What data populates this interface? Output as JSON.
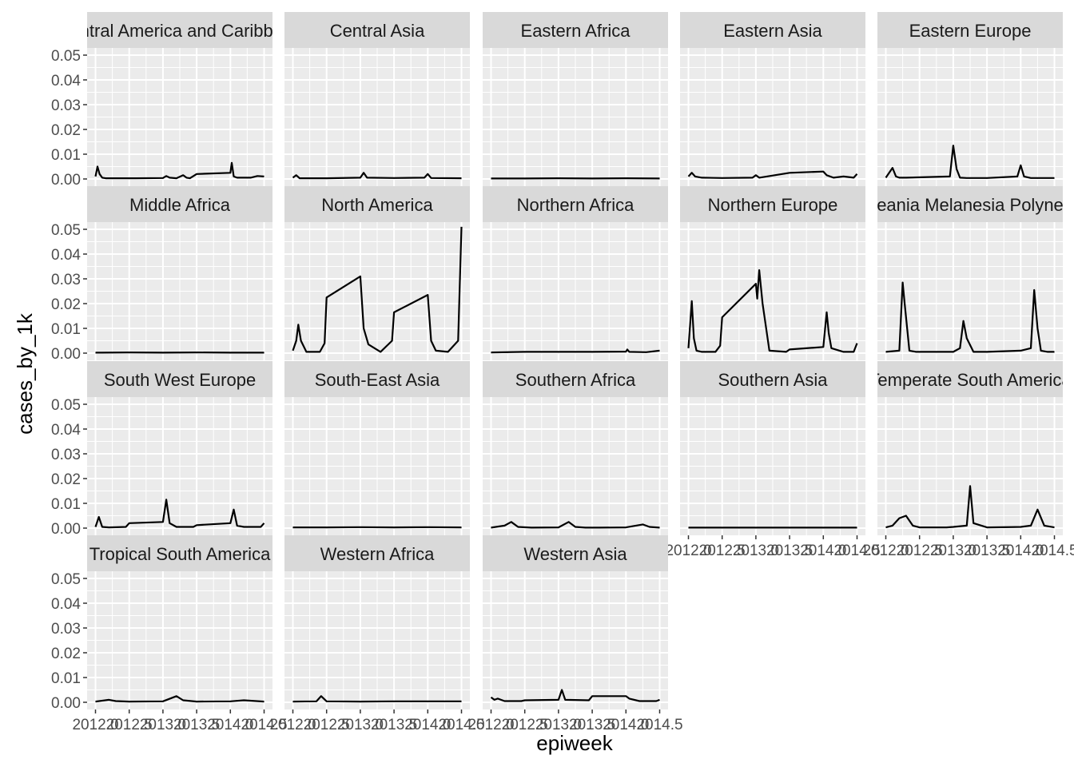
{
  "chart_data": {
    "type": "line",
    "facet_layout": "wrap",
    "xlabel": "epiweek",
    "ylabel": "cases_by_1k",
    "xlim": [
      2012.0,
      2014.5
    ],
    "ylim": [
      0.0,
      0.05
    ],
    "x_ticks": [
      "2012.0",
      "2012.5",
      "2013.0",
      "2013.5",
      "2014.0",
      "2014.5"
    ],
    "y_ticks": [
      "0.00",
      "0.01",
      "0.02",
      "0.03",
      "0.04",
      "0.05"
    ],
    "grid": true,
    "colors": {
      "panel_bg": "#ebebeb",
      "strip_bg": "#d9d9d9",
      "grid": "#ffffff",
      "line": "#000000"
    },
    "panels": [
      {
        "label": "Central America and Caribbean",
        "x": [
          2012.0,
          2012.03,
          2012.06,
          2012.1,
          2012.15,
          2012.3,
          2012.6,
          2013.0,
          2013.05,
          2013.1,
          2013.2,
          2013.3,
          2013.35,
          2013.4,
          2013.5,
          2014.0,
          2014.02,
          2014.05,
          2014.1,
          2014.3,
          2014.4,
          2014.5
        ],
        "y": [
          0.001,
          0.005,
          0.002,
          0.0005,
          0.0003,
          0.0003,
          0.0003,
          0.0004,
          0.0012,
          0.0005,
          0.0003,
          0.0015,
          0.0005,
          0.0003,
          0.002,
          0.0025,
          0.0065,
          0.001,
          0.0005,
          0.0005,
          0.0012,
          0.001
        ]
      },
      {
        "label": "Central Asia",
        "x": [
          2012.0,
          2012.05,
          2012.1,
          2012.5,
          2013.0,
          2013.05,
          2013.1,
          2013.5,
          2013.95,
          2014.0,
          2014.05,
          2014.5
        ],
        "y": [
          0.0005,
          0.0015,
          0.0003,
          0.0003,
          0.0005,
          0.0025,
          0.0005,
          0.0004,
          0.0005,
          0.002,
          0.0004,
          0.0003
        ]
      },
      {
        "label": "Eastern Africa",
        "x": [
          2012.0,
          2012.5,
          2013.0,
          2013.5,
          2014.0,
          2014.5
        ],
        "y": [
          0.0002,
          0.0002,
          0.0003,
          0.0002,
          0.0003,
          0.0002
        ]
      },
      {
        "label": "Eastern Asia",
        "x": [
          2012.0,
          2012.05,
          2012.1,
          2012.2,
          2012.5,
          2012.95,
          2013.0,
          2013.05,
          2013.5,
          2014.0,
          2014.05,
          2014.15,
          2014.3,
          2014.45,
          2014.5
        ],
        "y": [
          0.001,
          0.0025,
          0.001,
          0.0005,
          0.0004,
          0.0005,
          0.0015,
          0.0005,
          0.0025,
          0.003,
          0.0015,
          0.0005,
          0.001,
          0.0005,
          0.002
        ]
      },
      {
        "label": "Eastern Europe",
        "x": [
          2012.0,
          2012.1,
          2012.15,
          2012.2,
          2012.3,
          2012.95,
          2013.0,
          2013.05,
          2013.1,
          2013.2,
          2013.5,
          2013.95,
          2014.0,
          2014.05,
          2014.15,
          2014.5
        ],
        "y": [
          0.0005,
          0.0045,
          0.001,
          0.0005,
          0.0005,
          0.001,
          0.0135,
          0.004,
          0.0005,
          0.0004,
          0.0004,
          0.001,
          0.0055,
          0.001,
          0.0004,
          0.0004
        ]
      },
      {
        "label": "Middle Africa",
        "x": [
          2012.0,
          2012.5,
          2013.0,
          2013.5,
          2014.0,
          2014.5
        ],
        "y": [
          0.0002,
          0.0003,
          0.0002,
          0.0003,
          0.0002,
          0.0002
        ]
      },
      {
        "label": "North America",
        "x": [
          2012.0,
          2012.05,
          2012.08,
          2012.12,
          2012.2,
          2012.4,
          2012.47,
          2012.5,
          2013.0,
          2013.05,
          2013.12,
          2013.3,
          2013.47,
          2013.5,
          2014.0,
          2014.05,
          2014.12,
          2014.3,
          2014.45,
          2014.5
        ],
        "y": [
          0.001,
          0.005,
          0.0115,
          0.005,
          0.0005,
          0.0005,
          0.004,
          0.0225,
          0.031,
          0.01,
          0.0035,
          0.0005,
          0.005,
          0.0165,
          0.0235,
          0.005,
          0.001,
          0.0005,
          0.005,
          0.051
        ]
      },
      {
        "label": "Northern Africa",
        "x": [
          2012.0,
          2012.5,
          2013.0,
          2013.5,
          2014.0,
          2014.02,
          2014.05,
          2014.3,
          2014.5
        ],
        "y": [
          0.0003,
          0.0005,
          0.0005,
          0.0005,
          0.0006,
          0.0015,
          0.0005,
          0.0004,
          0.001
        ]
      },
      {
        "label": "Northern Europe",
        "x": [
          2012.0,
          2012.05,
          2012.08,
          2012.12,
          2012.2,
          2012.4,
          2012.47,
          2012.5,
          2013.0,
          2013.02,
          2013.05,
          2013.1,
          2013.2,
          2013.45,
          2013.5,
          2014.0,
          2014.05,
          2014.08,
          2014.12,
          2014.3,
          2014.45,
          2014.5
        ],
        "y": [
          0.002,
          0.021,
          0.006,
          0.001,
          0.0005,
          0.0005,
          0.003,
          0.0145,
          0.028,
          0.022,
          0.0335,
          0.02,
          0.001,
          0.0005,
          0.0015,
          0.0025,
          0.0165,
          0.008,
          0.002,
          0.0005,
          0.0005,
          0.004
        ]
      },
      {
        "label": "Oceania Melanesia Polynesia",
        "x": [
          2012.0,
          2012.2,
          2012.25,
          2012.28,
          2012.35,
          2012.45,
          2012.9,
          2013.0,
          2013.1,
          2013.15,
          2013.2,
          2013.3,
          2013.5,
          2014.0,
          2014.15,
          2014.2,
          2014.25,
          2014.3,
          2014.4,
          2014.5
        ],
        "y": [
          0.0005,
          0.001,
          0.0285,
          0.02,
          0.001,
          0.0005,
          0.0005,
          0.0005,
          0.002,
          0.013,
          0.006,
          0.0005,
          0.0005,
          0.001,
          0.002,
          0.0255,
          0.01,
          0.001,
          0.0005,
          0.0005
        ]
      },
      {
        "label": "South West Europe",
        "x": [
          2012.0,
          2012.05,
          2012.1,
          2012.2,
          2012.45,
          2012.5,
          2013.0,
          2013.05,
          2013.1,
          2013.2,
          2013.45,
          2013.5,
          2014.0,
          2014.05,
          2014.1,
          2014.2,
          2014.45,
          2014.5
        ],
        "y": [
          0.0005,
          0.0045,
          0.0005,
          0.0003,
          0.0005,
          0.002,
          0.0025,
          0.0115,
          0.002,
          0.0005,
          0.0005,
          0.0012,
          0.002,
          0.0075,
          0.001,
          0.0005,
          0.0005,
          0.002
        ]
      },
      {
        "label": "South-East Asia",
        "x": [
          2012.0,
          2012.5,
          2013.0,
          2013.5,
          2014.0,
          2014.5
        ],
        "y": [
          0.0003,
          0.0003,
          0.0004,
          0.0003,
          0.0004,
          0.0003
        ]
      },
      {
        "label": "Southern Africa",
        "x": [
          2012.0,
          2012.2,
          2012.3,
          2012.4,
          2012.6,
          2013.0,
          2013.15,
          2013.25,
          2013.4,
          2013.6,
          2014.0,
          2014.25,
          2014.35,
          2014.5
        ],
        "y": [
          0.0002,
          0.001,
          0.0025,
          0.0005,
          0.0002,
          0.0003,
          0.0025,
          0.0005,
          0.0002,
          0.0002,
          0.0003,
          0.0015,
          0.0005,
          0.0002
        ]
      },
      {
        "label": "Southern Asia",
        "x": [
          2012.0,
          2012.5,
          2013.0,
          2013.5,
          2014.0,
          2014.5
        ],
        "y": [
          0.0002,
          0.0002,
          0.0002,
          0.0002,
          0.0002,
          0.0002
        ]
      },
      {
        "label": "Temperate South America",
        "x": [
          2012.0,
          2012.1,
          2012.2,
          2012.3,
          2012.4,
          2012.5,
          2012.9,
          2013.0,
          2013.2,
          2013.25,
          2013.3,
          2013.5,
          2014.0,
          2014.15,
          2014.25,
          2014.35,
          2014.5
        ],
        "y": [
          0.0003,
          0.001,
          0.004,
          0.005,
          0.001,
          0.0003,
          0.0003,
          0.0005,
          0.001,
          0.017,
          0.002,
          0.0003,
          0.0005,
          0.001,
          0.0075,
          0.001,
          0.0003
        ]
      },
      {
        "label": "Tropical South America",
        "x": [
          2012.0,
          2012.2,
          2012.3,
          2012.5,
          2013.0,
          2013.2,
          2013.3,
          2013.5,
          2014.0,
          2014.2,
          2014.5
        ],
        "y": [
          0.0003,
          0.001,
          0.0005,
          0.0003,
          0.0004,
          0.0025,
          0.0008,
          0.0003,
          0.0004,
          0.0008,
          0.0003
        ]
      },
      {
        "label": "Western Africa",
        "x": [
          2012.0,
          2012.35,
          2012.42,
          2012.5,
          2013.0,
          2013.5,
          2014.0,
          2014.5
        ],
        "y": [
          0.0003,
          0.0004,
          0.0025,
          0.0004,
          0.0003,
          0.0004,
          0.0004,
          0.0004
        ]
      },
      {
        "label": "Western Asia",
        "x": [
          2012.0,
          2012.05,
          2012.1,
          2012.2,
          2012.45,
          2012.5,
          2013.0,
          2013.05,
          2013.1,
          2013.45,
          2013.5,
          2014.0,
          2014.05,
          2014.2,
          2014.45,
          2014.5
        ],
        "y": [
          0.002,
          0.001,
          0.0015,
          0.0005,
          0.0005,
          0.0008,
          0.001,
          0.005,
          0.001,
          0.0008,
          0.0025,
          0.0025,
          0.0015,
          0.0005,
          0.0005,
          0.001
        ]
      }
    ]
  }
}
